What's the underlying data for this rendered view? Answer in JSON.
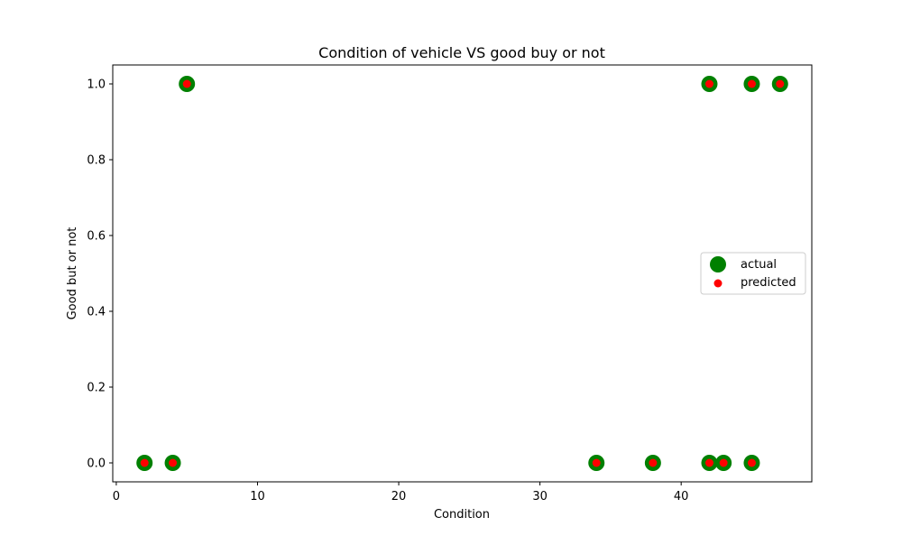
{
  "chart_data": {
    "type": "scatter",
    "title": "Condition of vehicle VS good buy or not",
    "xlabel": "Condition",
    "ylabel": "Good but or not",
    "xlim": [
      -0.25,
      49.25
    ],
    "ylim": [
      -0.05,
      1.05
    ],
    "x_ticks": [
      0,
      10,
      20,
      30,
      40
    ],
    "x_tick_labels": [
      "0",
      "10",
      "20",
      "30",
      "40"
    ],
    "y_ticks": [
      0.0,
      0.2,
      0.4,
      0.6,
      0.8,
      1.0
    ],
    "y_tick_labels": [
      "0.0",
      "0.2",
      "0.4",
      "0.6",
      "0.8",
      "1.0"
    ],
    "grid": false,
    "legend_position": "center-right",
    "series": [
      {
        "name": "actual",
        "color": "#008000",
        "marker": "large-circle",
        "x": [
          2,
          4,
          5,
          34,
          38,
          42,
          42,
          43,
          45,
          45,
          47
        ],
        "y": [
          0,
          0,
          1,
          0,
          0,
          1,
          0,
          0,
          1,
          0,
          1
        ]
      },
      {
        "name": "predicted",
        "color": "#ff0000",
        "marker": "small-circle",
        "x": [
          2,
          4,
          5,
          34,
          38,
          42,
          42,
          43,
          45,
          45,
          47
        ],
        "y": [
          0,
          0,
          1,
          0,
          0,
          1,
          0,
          0,
          1,
          0,
          1
        ]
      }
    ]
  }
}
